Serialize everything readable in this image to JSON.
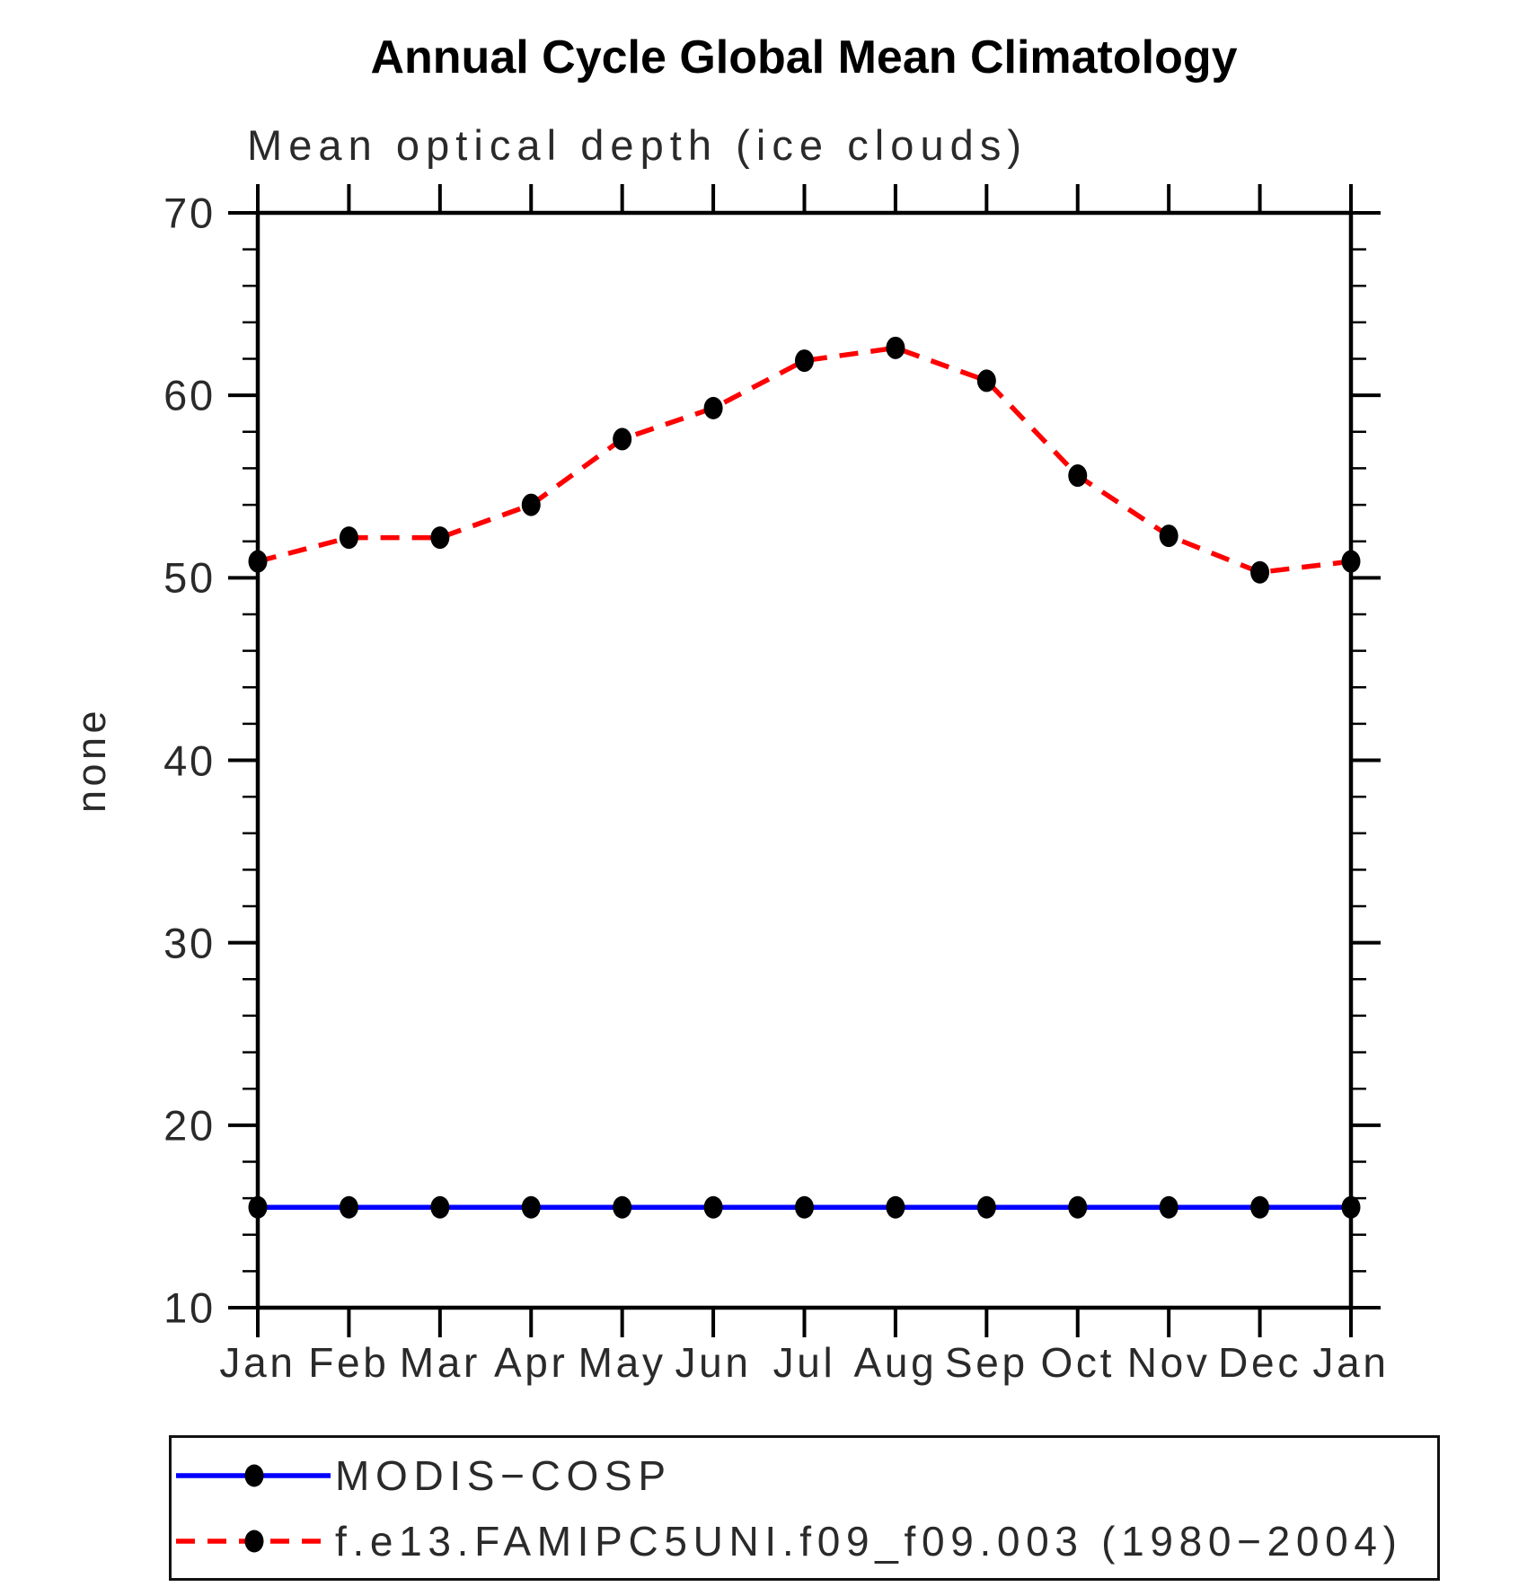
{
  "title": "Annual Cycle Global Mean Climatology",
  "subtitle": "Mean optical depth (ice clouds)",
  "ylabel": "none",
  "chart_data": {
    "type": "line",
    "categories": [
      "Jan",
      "Feb",
      "Mar",
      "Apr",
      "May",
      "Jun",
      "Jul",
      "Aug",
      "Sep",
      "Oct",
      "Nov",
      "Dec",
      "Jan"
    ],
    "xlabel": "",
    "ylabel": "none",
    "ylim": [
      10,
      70
    ],
    "ytick_major": [
      70,
      60,
      50,
      40,
      30,
      20,
      10
    ],
    "ytick_minor_step": 2,
    "grid": false,
    "legend_position": "bottom-left-box",
    "axis_color": "#000000",
    "marker_color": "#000000",
    "series": [
      {
        "name": "MODIS−COSP",
        "color": "#0000ff",
        "line_style": "solid",
        "marker": "filled-circle",
        "values": [
          15.5,
          15.5,
          15.5,
          15.5,
          15.5,
          15.5,
          15.5,
          15.5,
          15.5,
          15.5,
          15.5,
          15.5,
          15.5
        ]
      },
      {
        "name": "f.e13.FAMIPC5UNI.f09_f09.003 (1980−2004)",
        "color": "#ff0000",
        "line_style": "dashed",
        "marker": "filled-circle",
        "values": [
          50.9,
          52.2,
          52.2,
          54.0,
          57.6,
          59.3,
          61.9,
          62.6,
          60.8,
          55.6,
          52.3,
          50.3,
          50.9
        ]
      }
    ]
  }
}
